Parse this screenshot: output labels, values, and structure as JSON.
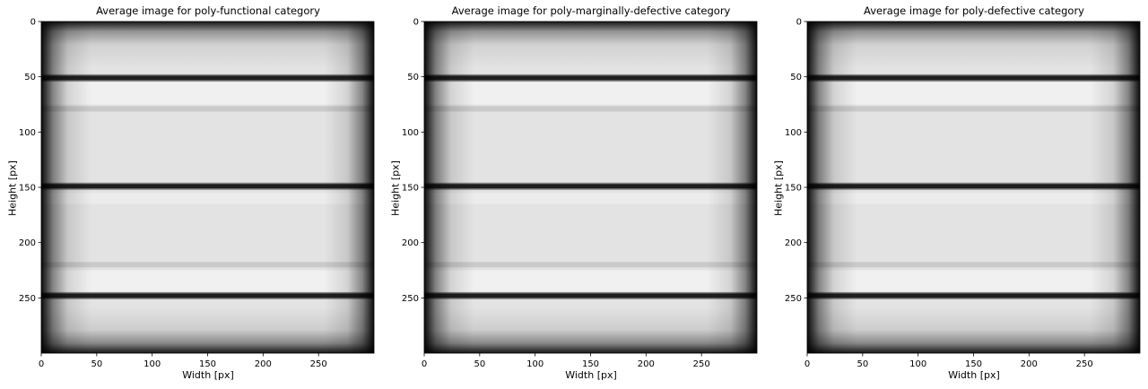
{
  "chart_data": [
    {
      "type": "heatmap",
      "title": "Average image for poly-functional category",
      "xlabel": "Width [px]",
      "ylabel": "Height [px]",
      "x_ticks": [
        0,
        50,
        100,
        150,
        200,
        250
      ],
      "y_ticks": [
        0,
        50,
        100,
        150,
        200,
        250
      ],
      "xlim": [
        0,
        300
      ],
      "ylim": [
        300,
        0
      ],
      "colormap": "gray",
      "dark_bands_y": [
        51,
        149,
        248
      ],
      "faint_bands_y": [
        79,
        220
      ]
    },
    {
      "type": "heatmap",
      "title": "Average image for poly-marginally-defective category",
      "xlabel": "Width [px]",
      "ylabel": "Height [px]",
      "x_ticks": [
        0,
        50,
        100,
        150,
        200,
        250
      ],
      "y_ticks": [
        0,
        50,
        100,
        150,
        200,
        250
      ],
      "xlim": [
        0,
        300
      ],
      "ylim": [
        300,
        0
      ],
      "colormap": "gray",
      "dark_bands_y": [
        51,
        149,
        248
      ],
      "faint_bands_y": [
        79,
        220
      ]
    },
    {
      "type": "heatmap",
      "title": "Average image for poly-defective category",
      "xlabel": "Width [px]",
      "ylabel": "Height [px]",
      "x_ticks": [
        0,
        50,
        100,
        150,
        200,
        250
      ],
      "y_ticks": [
        0,
        50,
        100,
        150,
        200,
        250
      ],
      "xlim": [
        0,
        300
      ],
      "ylim": [
        300,
        0
      ],
      "colormap": "gray",
      "dark_bands_y": [
        51,
        149,
        248
      ],
      "faint_bands_y": [
        79,
        220
      ]
    }
  ]
}
